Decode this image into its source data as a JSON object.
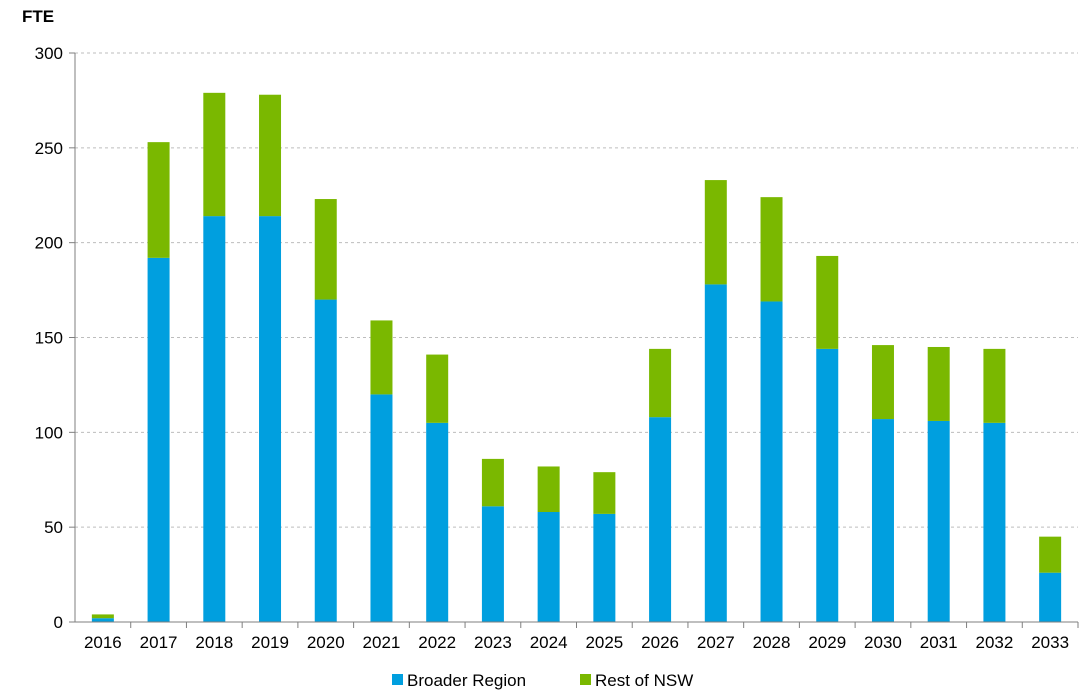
{
  "chart_data": {
    "type": "bar",
    "stacked": true,
    "ylabel": "FTE",
    "xlabel": "",
    "title": "",
    "ylim": [
      0,
      300
    ],
    "yticks": [
      0,
      50,
      100,
      150,
      200,
      250,
      300
    ],
    "grid": true,
    "legend_position": "bottom",
    "categories": [
      "2016",
      "2017",
      "2018",
      "2019",
      "2020",
      "2021",
      "2022",
      "2023",
      "2024",
      "2025",
      "2026",
      "2027",
      "2028",
      "2029",
      "2030",
      "2031",
      "2032",
      "2033"
    ],
    "series": [
      {
        "name": "Broader Region",
        "color": "#009FDF",
        "values": [
          2,
          192,
          214,
          214,
          170,
          120,
          105,
          61,
          58,
          57,
          108,
          178,
          169,
          144,
          107,
          106,
          105,
          26
        ]
      },
      {
        "name": "Rest of NSW",
        "color": "#7AB800",
        "values": [
          2,
          61,
          65,
          64,
          53,
          39,
          36,
          25,
          24,
          22,
          36,
          55,
          55,
          49,
          39,
          39,
          39,
          19
        ]
      }
    ]
  }
}
